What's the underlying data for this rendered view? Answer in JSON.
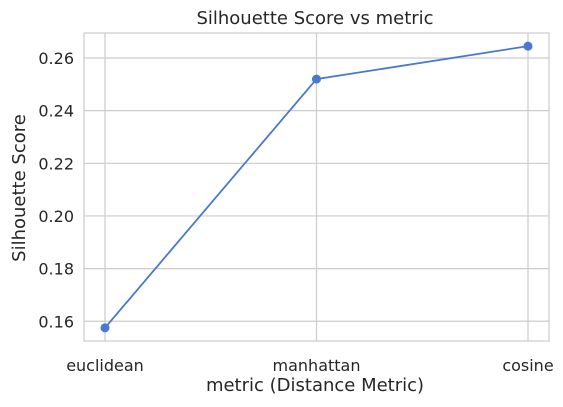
{
  "chart_data": {
    "type": "line",
    "title": "Silhouette Score vs metric",
    "xlabel": "metric (Distance Metric)",
    "ylabel": "Silhouette Score",
    "categories": [
      "euclidean",
      "manhattan",
      "cosine"
    ],
    "series": [
      {
        "values": [
          0.1575,
          0.252,
          0.2645
        ]
      }
    ],
    "ylim": [
      0.1525,
      0.2695
    ],
    "yticks": [
      0.16,
      0.18,
      0.2,
      0.22,
      0.24,
      0.26
    ],
    "ytick_labels": [
      "0.16",
      "0.18",
      "0.20",
      "0.22",
      "0.24",
      "0.26"
    ],
    "grid": true,
    "legend": "none",
    "colors": {
      "series": "#4878d0",
      "grid": "#cccccc",
      "text": "#262626"
    }
  }
}
